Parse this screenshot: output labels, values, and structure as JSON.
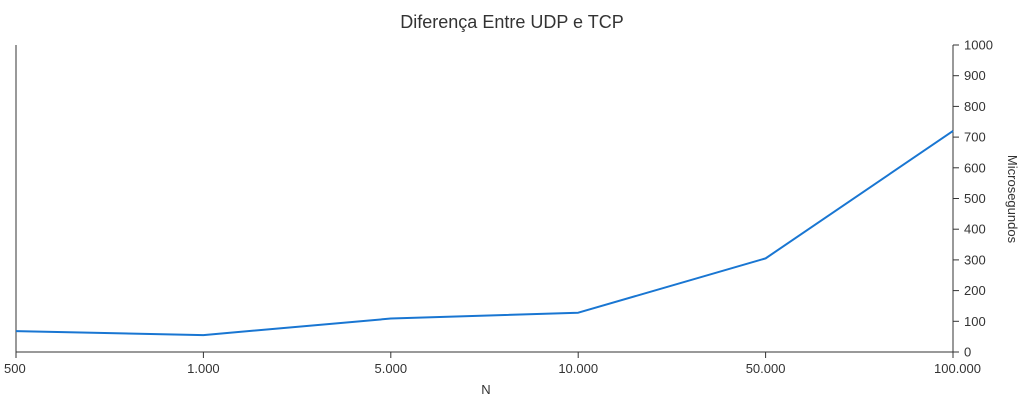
{
  "chart_data": {
    "type": "line",
    "title": "Diferença Entre UDP e TCP",
    "xlabel": "N",
    "ylabel": "Microsegundos",
    "categories": [
      "500",
      "1.000",
      "5.000",
      "10.000",
      "50.000",
      "100.000"
    ],
    "series": [
      {
        "values": [
          68,
          55,
          109,
          128,
          305,
          720
        ],
        "color": "#1976d2"
      }
    ],
    "ylim": [
      0,
      1000
    ],
    "yticks": [
      "0",
      "100",
      "200",
      "300",
      "400",
      "500",
      "600",
      "700",
      "800",
      "900",
      "1000"
    ],
    "y_axis_position": "right",
    "grid": false,
    "legend": "none"
  }
}
